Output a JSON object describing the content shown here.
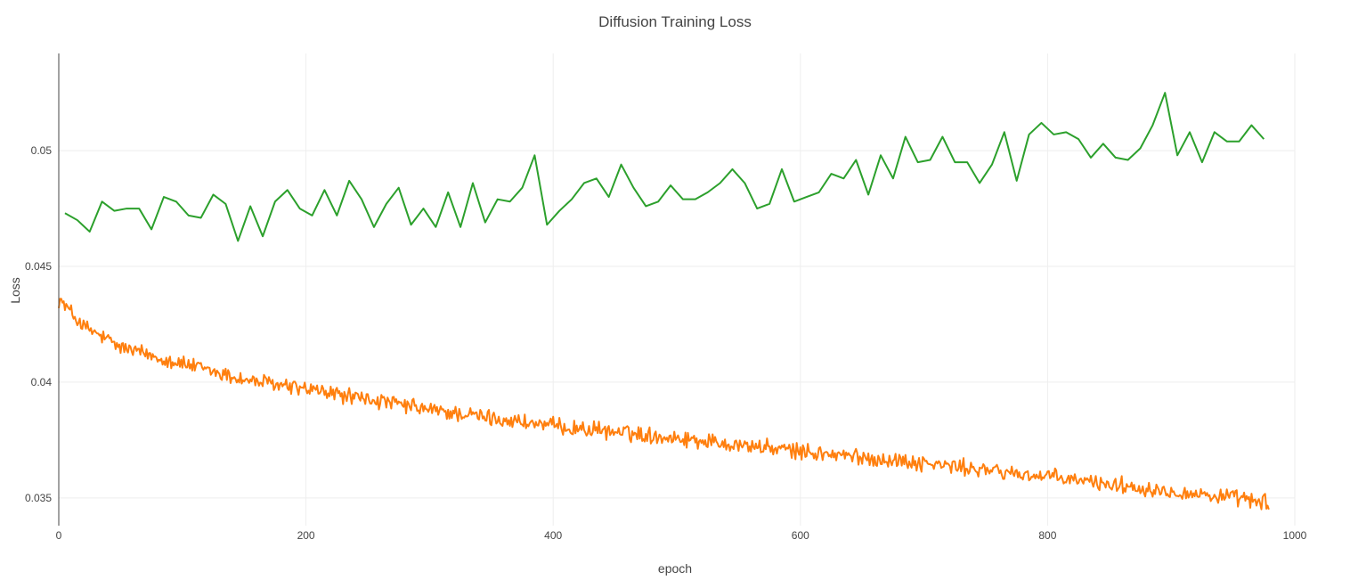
{
  "chart_data": {
    "type": "line",
    "title": "Diffusion Training Loss",
    "xlabel": "epoch",
    "ylabel": "Loss",
    "xlim": [
      0,
      1000
    ],
    "ylim": [
      0.0338,
      0.0542
    ],
    "x_ticks": [
      0,
      200,
      400,
      600,
      800,
      1000
    ],
    "x_tick_labels": [
      "0",
      "200",
      "400",
      "600",
      "800",
      "1000"
    ],
    "y_ticks": [
      0.035,
      0.04,
      0.045,
      0.05
    ],
    "y_tick_labels": [
      "0.035",
      "0.04",
      "0.045",
      "0.05"
    ],
    "grid": true,
    "legend": "none",
    "series": [
      {
        "color": "#ff7f0e",
        "x_start": 0,
        "x_step": 1,
        "count": 980,
        "trend": [
          [
            0,
            0.0436
          ],
          [
            20,
            0.0424
          ],
          [
            50,
            0.0415
          ],
          [
            100,
            0.0408
          ],
          [
            150,
            0.0401
          ],
          [
            200,
            0.0397
          ],
          [
            300,
            0.0388
          ],
          [
            400,
            0.0381
          ],
          [
            500,
            0.0376
          ],
          [
            600,
            0.037
          ],
          [
            700,
            0.0365
          ],
          [
            800,
            0.0359
          ],
          [
            900,
            0.0353
          ],
          [
            980,
            0.0348
          ]
        ],
        "noise_amplitude": 0.00028,
        "end_value": 0.0345
      },
      {
        "color": "#2ca02c",
        "x_start": 5,
        "x_step": 10,
        "values": [
          0.0473,
          0.047,
          0.0465,
          0.0478,
          0.0474,
          0.0475,
          0.0475,
          0.0466,
          0.048,
          0.0478,
          0.0472,
          0.0471,
          0.0481,
          0.0477,
          0.0461,
          0.0476,
          0.0463,
          0.0478,
          0.0483,
          0.0475,
          0.0472,
          0.0483,
          0.0472,
          0.0487,
          0.0479,
          0.0467,
          0.0477,
          0.0484,
          0.0468,
          0.0475,
          0.0467,
          0.0482,
          0.0467,
          0.0486,
          0.0469,
          0.0479,
          0.0478,
          0.0484,
          0.0498,
          0.0468,
          0.0474,
          0.0479,
          0.0486,
          0.0488,
          0.048,
          0.0494,
          0.0484,
          0.0476,
          0.0478,
          0.0485,
          0.0479,
          0.0479,
          0.0482,
          0.0486,
          0.0492,
          0.0486,
          0.0475,
          0.0477,
          0.0492,
          0.0478,
          0.048,
          0.0482,
          0.049,
          0.0488,
          0.0496,
          0.0481,
          0.0498,
          0.0488,
          0.0506,
          0.0495,
          0.0496,
          0.0506,
          0.0495,
          0.0495,
          0.0486,
          0.0494,
          0.0508,
          0.0487,
          0.0507,
          0.0512,
          0.0507,
          0.0508,
          0.0505,
          0.0497,
          0.0503,
          0.0497,
          0.0496,
          0.0501,
          0.0511,
          0.0525,
          0.0498,
          0.0508,
          0.0495,
          0.0508,
          0.0504,
          0.0504,
          0.0511,
          0.0505
        ]
      }
    ]
  }
}
